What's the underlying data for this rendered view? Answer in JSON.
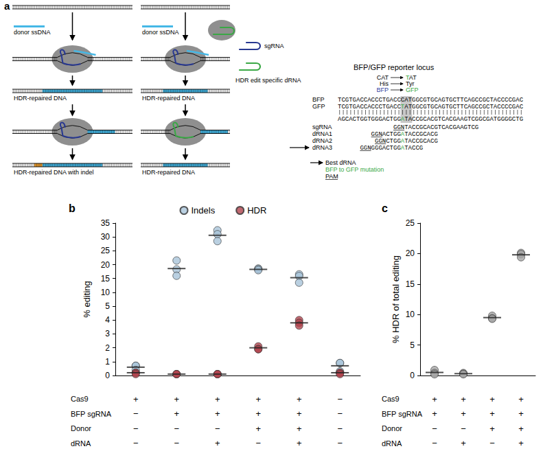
{
  "panel_a": {
    "panel_label": "a",
    "workflows": [
      {
        "donor": "donor ssDNA",
        "products": [
          "HDR-repaired DNA",
          "HDR-repaired DNA with indel"
        ]
      },
      {
        "donor": "donor ssDNA",
        "products": [
          "HDR-repaired DNA",
          "HDR-repaired DNA"
        ],
        "guides": [
          "sgRNA",
          "HDR edit specific dRNA"
        ]
      }
    ],
    "reporter": {
      "title": "BFP/GFP reporter locus",
      "changes": [
        {
          "from": "CAT",
          "to": "TAT"
        },
        {
          "from": "His",
          "to": "Tyr"
        },
        {
          "from": "BFP",
          "to": "GFP"
        }
      ],
      "strands": [
        {
          "label": "BFP",
          "sequence": "TCGTGACCACCCTGACCCATGGCGTGCAGTGCTTCAGCCGCTACCCCGAC"
        },
        {
          "label": "GFP",
          "sequence": "TCGTGACCACCCTGACCTATGGCGTGCAGTGCTTCAGCCGCTACCCCGAC"
        }
      ],
      "complement": "AGCACTGGTGGGACTGGATACCGCACGTCACGAAGTCGGCGATGGGGCTG",
      "guides": [
        {
          "label": "sgRNA",
          "pam": "GGN",
          "sequence": "TACCGCACGTCACGAAGTCG"
        },
        {
          "label": "dRNA1",
          "pam": "GGN",
          "sequence": "ACTGGATACCGCACG"
        },
        {
          "label": "dRNA2",
          "pam": "GGN",
          "sequence": "CTGGATACCGCACG"
        },
        {
          "label": "dRNA3",
          "pam": "GGN",
          "sequence": "GGGACTGGATACCG"
        }
      ],
      "best": "dRNA3",
      "key": {
        "best": "Best dRNA",
        "mutation": "BFP to GFP mutation",
        "pam": "PAM"
      }
    }
  },
  "chart_data": [
    {
      "type": "scatter",
      "panel_label": "b",
      "ylabel": "% editing",
      "categories": [
        null,
        null,
        null,
        null,
        null,
        null
      ],
      "ylim": [
        0,
        35
      ],
      "yticks": [
        0,
        1,
        2,
        3,
        4,
        5,
        10,
        15,
        20,
        25,
        30,
        35
      ],
      "grid": false,
      "legend": "top",
      "series": [
        {
          "name": "Indels",
          "color": "#a9c4d9",
          "values": [
            [
              0.7,
              0.7,
              0.4
            ],
            [
              21.5,
              18.3,
              16.0
            ],
            [
              32.4,
              31.0,
              28.5
            ],
            [
              18.6,
              18.4,
              18.0
            ],
            [
              16.5,
              15.9,
              13.5
            ],
            [
              0.9,
              0.9,
              0.3
            ]
          ],
          "means": [
            0.6,
            18.6,
            30.6,
            18.3,
            15.3,
            0.7
          ]
        },
        {
          "name": "HDR",
          "color": "#b0434d",
          "values": [
            [
              0.2,
              0.2,
              0.1
            ],
            [
              0.1,
              0.1,
              0.1
            ],
            [
              0.1,
              0.1,
              0.1
            ],
            [
              2.1,
              1.9,
              1.9
            ],
            [
              4.0,
              3.8,
              3.6
            ],
            [
              0.2,
              0.2,
              0.1
            ]
          ],
          "means": [
            0.2,
            0.1,
            0.1,
            2.0,
            3.8,
            0.2
          ]
        }
      ],
      "conditions": [
        {
          "label": "Cas9",
          "values": [
            "+",
            "+",
            "+",
            "+",
            "+",
            "−"
          ]
        },
        {
          "label": "BFP sgRNA",
          "values": [
            "−",
            "+",
            "+",
            "+",
            "+",
            "−"
          ]
        },
        {
          "label": "Donor",
          "values": [
            "−",
            "−",
            "−",
            "+",
            "+",
            "−"
          ]
        },
        {
          "label": "dRNA",
          "values": [
            "−",
            "−",
            "+",
            "−",
            "+",
            "−"
          ]
        }
      ]
    },
    {
      "type": "scatter",
      "panel_label": "c",
      "ylabel": "% HDR of total editing",
      "categories": [
        null,
        null,
        null,
        null
      ],
      "ylim": [
        0,
        25
      ],
      "yticks": [
        0,
        5,
        10,
        15,
        20,
        25
      ],
      "grid": false,
      "color": "#a6a6a6",
      "values": [
        [
          0.9,
          0.4,
          0.2
        ],
        [
          0.4,
          0.3,
          0.2
        ],
        [
          9.8,
          9.4,
          9.3
        ],
        [
          20.1,
          19.9,
          19.4
        ]
      ],
      "means": [
        0.5,
        0.3,
        9.5,
        19.8
      ],
      "conditions": [
        {
          "label": "Cas9",
          "values": [
            "+",
            "+",
            "+",
            "+"
          ]
        },
        {
          "label": "BFP sgRNA",
          "values": [
            "+",
            "+",
            "+",
            "+"
          ]
        },
        {
          "label": "Donor",
          "values": [
            "−",
            "−",
            "+",
            "+"
          ]
        },
        {
          "label": "dRNA",
          "values": [
            "−",
            "+",
            "−",
            "+"
          ]
        }
      ]
    }
  ]
}
